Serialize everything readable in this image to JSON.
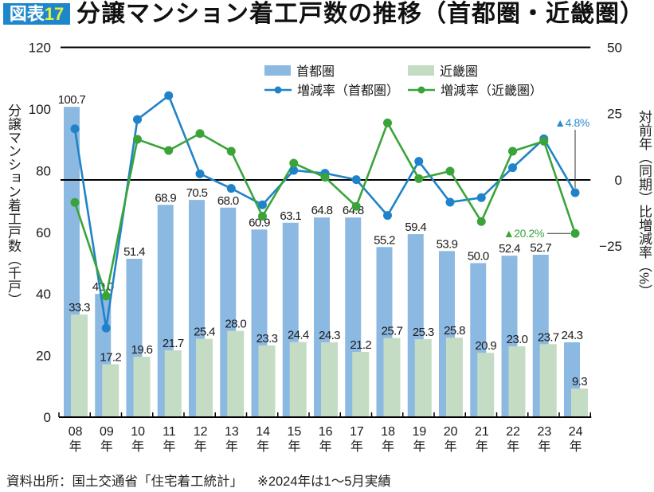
{
  "title": {
    "badge_prefix": "図表",
    "badge_number": "17",
    "text": "分譲マンション着工戸数の推移（首都圏・近畿圏）"
  },
  "footer": {
    "source": "資料出所：国土交通省「住宅着工統計」",
    "note": "※2024年は1～5月実績"
  },
  "colors": {
    "badge_bg": "#1e87cb",
    "badge_number": "#e6f03a",
    "bar_shutoken": "#8cb9e2",
    "bar_kinki": "#c4dcc4",
    "line_shutoken": "#1f83c9",
    "line_kinki": "#3aa43a",
    "axis": "#000000"
  },
  "chart_data": {
    "type": "bar",
    "overlay_type": "line",
    "title": "分譲マンション着工戸数の推移（首都圏・近畿圏）",
    "categories": [
      "08",
      "09",
      "10",
      "11",
      "12",
      "13",
      "14",
      "15",
      "16",
      "17",
      "18",
      "19",
      "20",
      "21",
      "22",
      "23",
      "24"
    ],
    "x_tick_suffix": "年",
    "xlabel": "",
    "ylabel": "分譲マンション着工戸数（千戸）",
    "ylim": [
      0,
      120
    ],
    "yticks": [
      0,
      20,
      40,
      60,
      80,
      100,
      120
    ],
    "ytick_labels": [
      "0",
      "20",
      "40",
      "60",
      "80",
      "100",
      "120"
    ],
    "y2label": "対前年（同期）比増減率（%）",
    "y2lim": [
      -89.5,
      50
    ],
    "y2ticks": [
      50,
      25,
      0,
      -25
    ],
    "y2tick_labels": [
      "50",
      "25",
      "0",
      "−25"
    ],
    "reference_lines": [
      {
        "axis": "right",
        "value": 0
      }
    ],
    "grid": false,
    "legend_position": "top-center",
    "series": [
      {
        "name": "首都圏",
        "type": "bar",
        "axis": "left",
        "color": "#8cb9e2",
        "values": [
          100.7,
          40.0,
          51.4,
          68.9,
          70.5,
          68.0,
          60.9,
          63.1,
          64.8,
          64.8,
          55.2,
          59.4,
          53.9,
          50.0,
          52.4,
          52.7,
          24.3
        ],
        "labels": [
          "100.7",
          "40.0",
          "51.4",
          "68.9",
          "70.5",
          "68.0",
          "60.9",
          "63.1",
          "64.8",
          "64.8",
          "55.2",
          "59.4",
          "53.9",
          "50.0",
          "52.4",
          "52.7",
          "24.3"
        ]
      },
      {
        "name": "近畿圏",
        "type": "bar",
        "axis": "left",
        "color": "#c4dcc4",
        "values": [
          33.3,
          17.2,
          19.6,
          21.7,
          25.4,
          28.0,
          23.3,
          24.4,
          24.3,
          21.2,
          25.7,
          25.3,
          25.8,
          20.9,
          23.0,
          23.7,
          9.3
        ],
        "labels": [
          "33.3",
          "17.2",
          "19.6",
          "21.7",
          "25.4",
          "28.0",
          "23.3",
          "24.4",
          "24.3",
          "21.2",
          "25.7",
          "25.3",
          "25.8",
          "20.9",
          "23.0",
          "23.7",
          "9.3"
        ]
      },
      {
        "name": "増減率（首都圏）",
        "type": "line",
        "axis": "right",
        "color": "#1f83c9",
        "values": [
          19.3,
          -55.9,
          22.8,
          31.8,
          2.3,
          -3.2,
          -9.4,
          3.6,
          2.5,
          0.1,
          -13.4,
          7.0,
          -8.4,
          -6.7,
          4.6,
          15.5,
          -4.8
        ]
      },
      {
        "name": "増減率（近畿圏）",
        "type": "line",
        "axis": "right",
        "color": "#3aa43a",
        "values": [
          -8.5,
          -43.8,
          15.3,
          11.1,
          17.5,
          10.8,
          -13.7,
          6.3,
          1.0,
          -10.0,
          21.5,
          0.5,
          3.3,
          -15.7,
          10.8,
          14.6,
          -20.2
        ]
      }
    ],
    "annotations": [
      {
        "series": 2,
        "index": 16,
        "text": "▲4.8%",
        "color": "#2a8ad0",
        "placement": "above"
      },
      {
        "series": 3,
        "index": 16,
        "text": "▲20.2%",
        "color": "#3aa43a",
        "placement": "left"
      }
    ]
  }
}
